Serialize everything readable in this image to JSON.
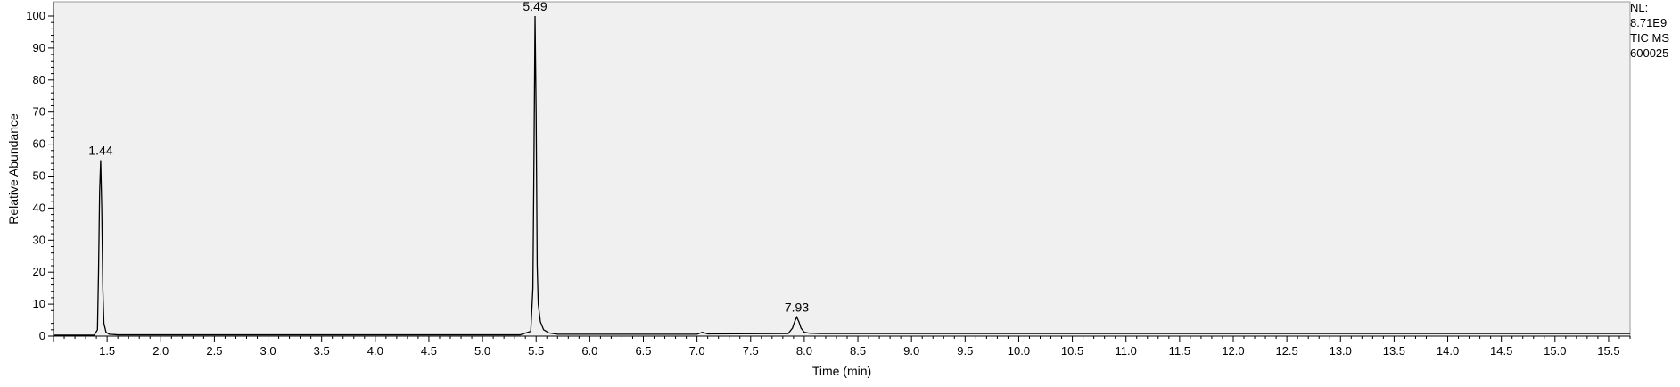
{
  "chart_data": {
    "type": "line",
    "xlabel": "Time (min)",
    "ylabel": "Relative Abundance",
    "xlim": [
      1.0,
      15.7
    ],
    "ylim": [
      0,
      100
    ],
    "grid": false,
    "x_ticks": [
      "1.5",
      "2.0",
      "2.5",
      "3.0",
      "3.5",
      "4.0",
      "4.5",
      "5.0",
      "5.5",
      "6.0",
      "6.5",
      "7.0",
      "7.5",
      "8.0",
      "8.5",
      "9.0",
      "9.5",
      "10.0",
      "10.5",
      "11.0",
      "11.5",
      "12.0",
      "12.5",
      "13.0",
      "13.5",
      "14.0",
      "14.5",
      "15.0",
      "15.5"
    ],
    "y_ticks": [
      "0",
      "10",
      "20",
      "30",
      "40",
      "50",
      "60",
      "70",
      "80",
      "90",
      "100"
    ],
    "series": [
      {
        "x": [
          1.0,
          1.38,
          1.41,
          1.42,
          1.43,
          1.44,
          1.45,
          1.46,
          1.47,
          1.49,
          1.52,
          1.6,
          5.35,
          5.45,
          5.47,
          5.48,
          5.49,
          5.5,
          5.51,
          5.52,
          5.54,
          5.57,
          5.62,
          5.7,
          7.0,
          7.05,
          7.1,
          7.85,
          7.89,
          7.91,
          7.93,
          7.95,
          7.97,
          8.0,
          8.05,
          8.15,
          15.7
        ],
        "y": [
          0.3,
          0.3,
          2,
          20,
          45,
          55,
          40,
          15,
          4,
          1.2,
          0.6,
          0.4,
          0.4,
          1.5,
          15,
          55,
          100,
          70,
          22,
          10,
          4.5,
          2,
          1,
          0.6,
          0.6,
          1.2,
          0.7,
          0.8,
          2.5,
          4.5,
          6,
          4.5,
          2.5,
          1.2,
          0.9,
          0.8,
          0.8
        ]
      }
    ],
    "peak_labels": [
      {
        "x": 1.44,
        "y": 55,
        "text": "1.44"
      },
      {
        "x": 5.49,
        "y": 100,
        "text": "5.49"
      },
      {
        "x": 7.93,
        "y": 6,
        "text": "7.93"
      }
    ]
  },
  "info": {
    "nl_label": "NL:",
    "nl_value": "8.71E9",
    "tic": "TIC  MS",
    "sample": "600025"
  },
  "colors": {
    "plot_background": "#f0f0f0",
    "trace": "#000000",
    "axis": "#000000"
  }
}
